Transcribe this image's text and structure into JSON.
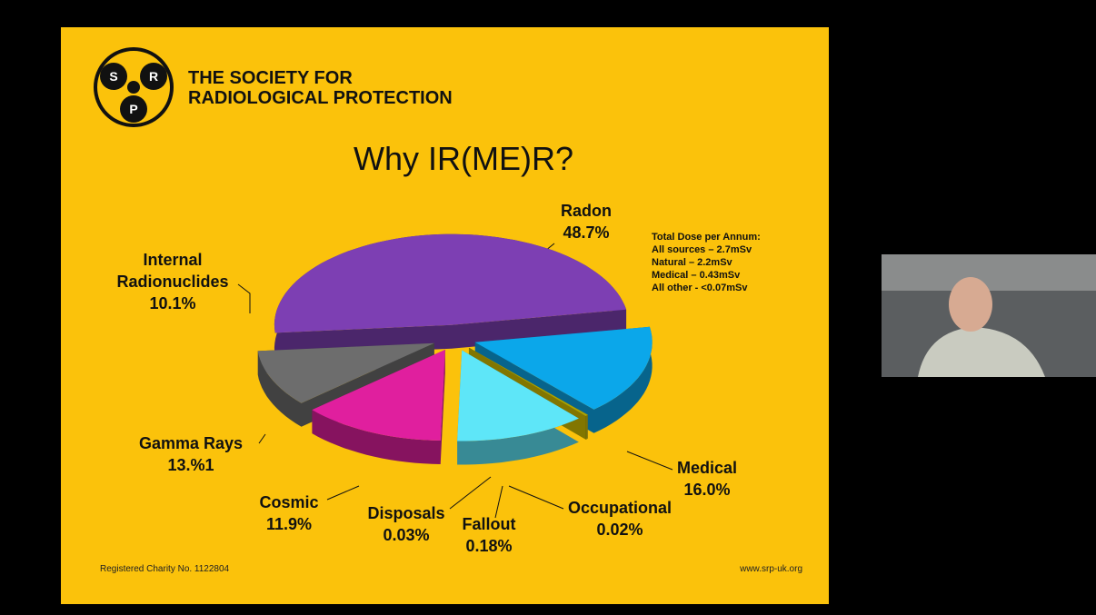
{
  "slide": {
    "org_name_lines": [
      "THE SOCIETY FOR",
      "RADIOLOGICAL PROTECTION"
    ],
    "logo_letters": [
      "S",
      "R",
      "P"
    ],
    "footer_left": "Registered Charity No. 1122804",
    "footer_right": "www.srp-uk.org"
  },
  "chart_data": {
    "type": "pie",
    "title": "Why IR(ME)R?",
    "categories": [
      "Radon",
      "Medical",
      "Occupational",
      "Fallout",
      "Disposals",
      "Cosmic",
      "Gamma Rays",
      "Internal Radionuclides"
    ],
    "values": [
      48.7,
      16.0,
      0.02,
      0.18,
      0.03,
      11.9,
      13.1,
      10.1
    ],
    "value_labels": [
      "48.7%",
      "16.0%",
      "0.02%",
      "0.18%",
      "0.03%",
      "11.9%",
      "13.%1",
      "10.1%"
    ],
    "colors": [
      "#7d3fb3",
      "#0ba7ea",
      "#c9bb10",
      "#b0a800",
      "#d8c400",
      "#5ee6f8",
      "#e01f9e",
      "#6d6d6d"
    ],
    "annotations": [
      "Total Dose per Annum:",
      "All sources – 2.7mSv",
      "Natural – 2.2mSv",
      "Medical – 0.43mSv",
      "All other - <0.07mSv"
    ]
  }
}
